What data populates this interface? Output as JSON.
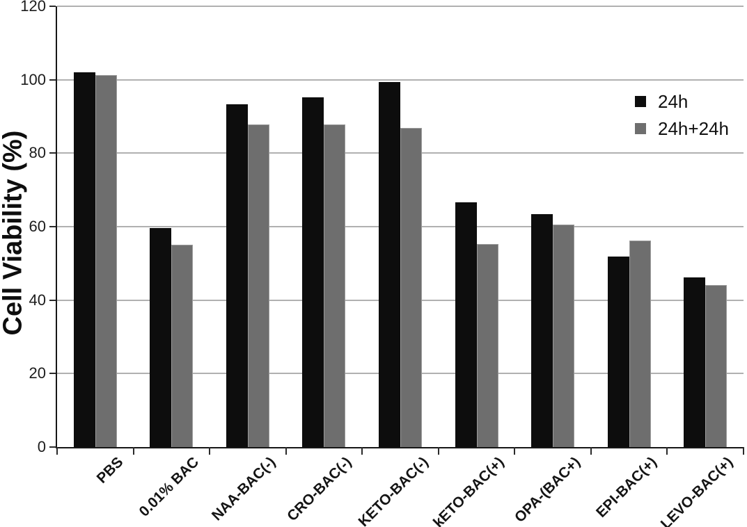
{
  "figure": {
    "kind": "scientific bar chart figure",
    "background_color": "#ffffff"
  },
  "chart_data": {
    "type": "bar",
    "title": "",
    "xlabel": "",
    "ylabel": "Cell Viability (%)",
    "ylim": [
      0,
      120
    ],
    "yticks": [
      0,
      20,
      40,
      60,
      80,
      100,
      120
    ],
    "grid": "horizontal",
    "legend_position": "upper-right-inside",
    "categories": [
      "PBS",
      "0.01% BAC",
      "NAA-BAC(-)",
      "CRO-BAC(-)",
      "KETO-BAC(-)",
      "kETO-BAC(+)",
      "OPA-(BAC+)",
      "EPI-BAC(+)",
      "LEVO-BAC(+)"
    ],
    "series": [
      {
        "name": "24h",
        "color": "#0d0d0d",
        "values": [
          102.0,
          59.7,
          93.3,
          95.2,
          99.4,
          66.7,
          63.4,
          51.9,
          46.2
        ]
      },
      {
        "name": "24h+24h",
        "color": "#6e6e6e",
        "values": [
          101.2,
          55.1,
          87.8,
          87.8,
          86.9,
          55.3,
          60.5,
          56.3,
          44.1
        ]
      }
    ],
    "colors": {
      "gridline": "#b0b0b0",
      "axis": "#161616",
      "tick_label": "#1c1c1c",
      "gray_bar_border": "#9c9c9c"
    }
  }
}
